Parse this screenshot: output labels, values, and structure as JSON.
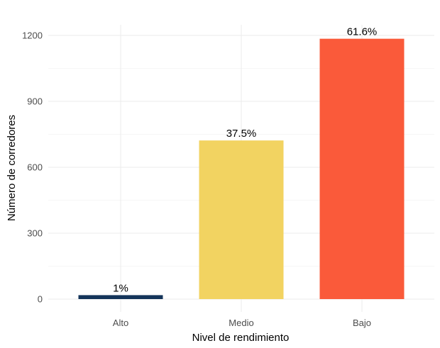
{
  "chart_data": {
    "type": "bar",
    "title": "",
    "xlabel": "Nivel de rendimiento",
    "ylabel": "Número de corredores",
    "categories": [
      "Alto",
      "Medio",
      "Bajo"
    ],
    "values": [
      18,
      722,
      1185
    ],
    "labels": [
      "1%",
      "37.5%",
      "61.6%"
    ],
    "colors": [
      "#14345a",
      "#f2d361",
      "#fa5a3a"
    ],
    "ylim": [
      0,
      1240
    ],
    "yticks": [
      0,
      300,
      600,
      900,
      1200
    ],
    "ytick_labels": [
      "0",
      "300",
      "600",
      "900",
      "1200"
    ],
    "grid": true,
    "legend": "none"
  }
}
